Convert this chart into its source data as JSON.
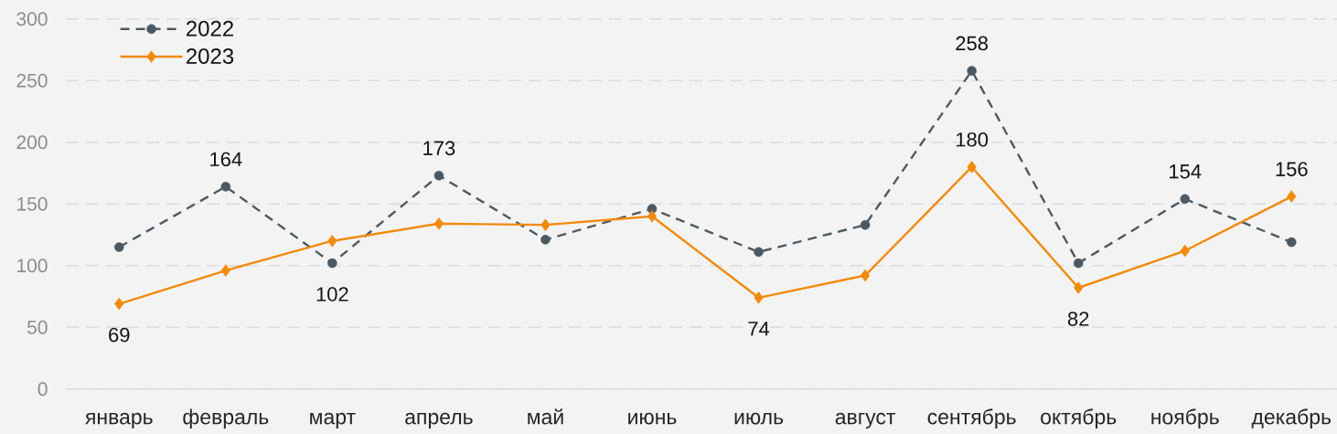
{
  "chart_data": {
    "type": "line",
    "categories": [
      "январь",
      "февраль",
      "март",
      "апрель",
      "май",
      "июнь",
      "июль",
      "август",
      "сентябрь",
      "октябрь",
      "ноябрь",
      "декабрь"
    ],
    "ylim": [
      0,
      300
    ],
    "yticks": [
      0,
      50,
      100,
      150,
      200,
      250,
      300
    ],
    "grid": "y",
    "legend": "top left",
    "series": [
      {
        "name": "2022",
        "color": "#4d5962",
        "marker": "circle",
        "line_style": "dashed",
        "values": [
          115,
          164,
          102,
          173,
          121,
          146,
          111,
          133,
          258,
          102,
          154,
          119
        ],
        "value_labels": [
          null,
          "164",
          "102",
          "173",
          null,
          null,
          null,
          null,
          "258",
          null,
          "154",
          null
        ]
      },
      {
        "name": "2023",
        "color": "#f08a0c",
        "marker": "diamond",
        "line_style": "solid",
        "values": [
          69,
          96,
          120,
          134,
          133,
          140,
          74,
          92,
          180,
          82,
          112,
          156
        ],
        "value_labels": [
          "69",
          null,
          null,
          null,
          null,
          null,
          "74",
          null,
          "180",
          "82",
          null,
          "156"
        ]
      }
    ]
  }
}
